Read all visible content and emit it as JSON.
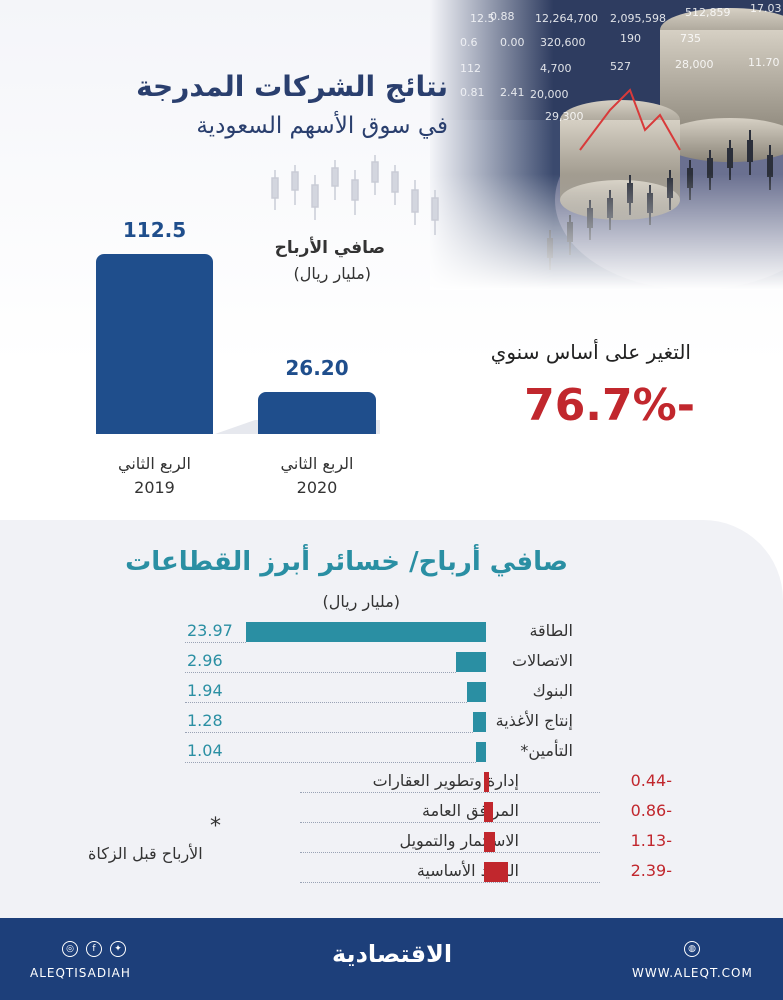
{
  "header": {
    "title": "نتائج الشركات المدرجة",
    "subtitle": "في سوق الأسهم السعودية"
  },
  "market_numbers": [
    "12,264,700",
    "2,095,598",
    "512,859",
    "17.03",
    "320,600",
    "190",
    "735",
    "4,700",
    "527",
    "28,000",
    "11.70",
    "20,000",
    "29,300",
    "0.88",
    "0.00",
    "2.41",
    "0.81",
    "0.6",
    "112",
    "12.5"
  ],
  "net_profit": {
    "header": "صافي الأرباح",
    "unit": "(مليار ريال)",
    "q2_2019_label": "الربع الثاني",
    "q2_2019_year": "2019",
    "q2_2019_value": "112.5",
    "q2_2020_label": "الربع الثاني",
    "q2_2020_year": "2020",
    "q2_2020_value": "26.20"
  },
  "yoy": {
    "label": "التغير على أساس سنوي",
    "value": "-76.7%"
  },
  "sectors": {
    "title": "صافي أرباح/ خسائر أبرز القطاعات",
    "unit": "(مليار ريال)",
    "rows": [
      {
        "label": "الطاقة",
        "value": "23.97"
      },
      {
        "label": "الاتصالات",
        "value": "2.96"
      },
      {
        "label": "البنوك",
        "value": "1.94"
      },
      {
        "label": "إنتاج الأغذية",
        "value": "1.28"
      },
      {
        "label": "التأمين*",
        "value": "1.04"
      },
      {
        "label": "إدارة وتطوير العقارات",
        "value": "-0.44"
      },
      {
        "label": "المرافق العامة",
        "value": "-0.86"
      },
      {
        "label": "الاستثمار والتمويل",
        "value": "-1.13"
      },
      {
        "label": "المواد الأساسية",
        "value": "-2.39"
      }
    ],
    "note_star": "*",
    "note": "الأرباح قبل الزكاة"
  },
  "chart_data": [
    {
      "type": "bar",
      "categories": [
        "الربع الثاني 2019",
        "الربع الثاني 2020"
      ],
      "values": [
        112.5,
        26.2
      ],
      "title": "صافي الأرباح",
      "ylabel": "مليار ريال"
    },
    {
      "type": "bar",
      "orientation": "horizontal",
      "title": "صافي أرباح/ خسائر أبرز القطاعات",
      "unit": "مليار ريال",
      "categories": [
        "الطاقة",
        "الاتصالات",
        "البنوك",
        "إنتاج الأغذية",
        "التأمين*",
        "إدارة وتطوير العقارات",
        "المرافق العامة",
        "الاستثمار والتمويل",
        "المواد الأساسية"
      ],
      "values": [
        23.97,
        2.96,
        1.94,
        1.28,
        1.04,
        -0.44,
        -0.86,
        -1.13,
        -2.39
      ],
      "colors": {
        "positive": "#2a8fa3",
        "negative": "#c1272d"
      }
    }
  ],
  "colors": {
    "primary": "#1f4e8c",
    "accent": "#2a8fa3",
    "negative": "#c1272d",
    "footer": "#1d3f7a"
  },
  "footer": {
    "brand": "الاقتصادية",
    "handle": "ALEQTISADIAH",
    "website": "WWW.ALEQT.COM",
    "social_icons": [
      "instagram-icon",
      "facebook-icon",
      "twitter-icon"
    ],
    "site_icon": "globe-icon"
  }
}
